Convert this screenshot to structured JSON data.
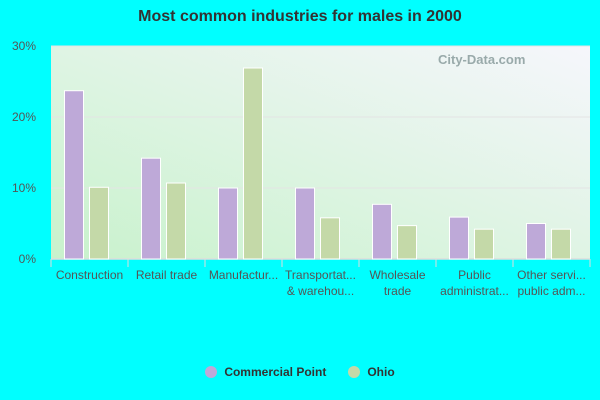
{
  "chart_data": {
    "type": "bar",
    "title": "Most common industries for males in 2000",
    "categories": [
      [
        "Construction"
      ],
      [
        "Retail trade"
      ],
      [
        "Manufactur..."
      ],
      [
        "Transportat...",
        "& warehou..."
      ],
      [
        "Wholesale",
        "trade"
      ],
      [
        "Public",
        "administrat..."
      ],
      [
        "Other servi...",
        "public adm..."
      ]
    ],
    "series": [
      {
        "name": "Commercial Point",
        "color": "#bea9d8",
        "values": [
          23.7,
          14.2,
          10.0,
          10.0,
          7.7,
          5.9,
          5.0
        ]
      },
      {
        "name": "Ohio",
        "color": "#c4d9a8",
        "values": [
          10.1,
          10.7,
          26.9,
          5.8,
          4.7,
          4.2,
          4.2
        ]
      }
    ],
    "yticks": [
      "0%",
      "10%",
      "20%",
      "30%"
    ],
    "ylim": [
      0,
      30
    ],
    "grid": true,
    "legend_placement": "bottom",
    "watermark": "City-Data.com"
  }
}
